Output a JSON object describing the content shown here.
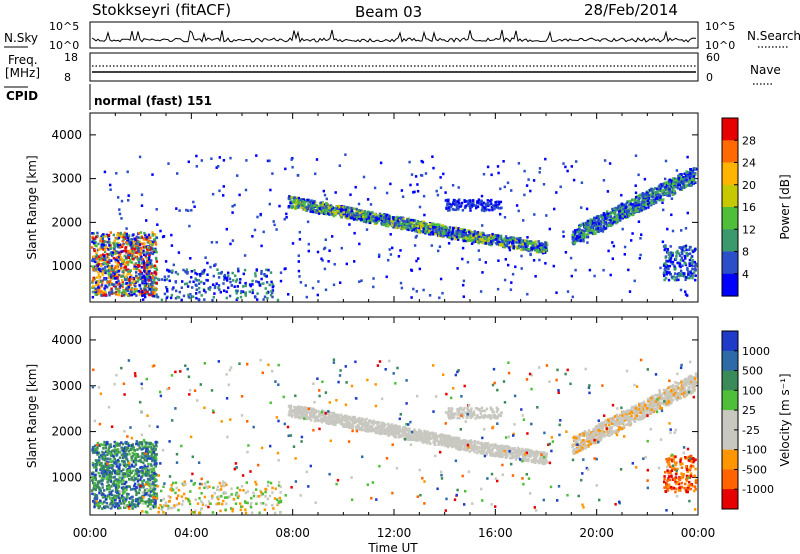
{
  "header": {
    "station": "Stokkseyri (fitACF)",
    "beam": "Beam 03",
    "date": "28/Feb/2014"
  },
  "summary": {
    "nsky_label": "N.Sky",
    "nsearch_label": "N.Search",
    "freq_label_1": "Freq.",
    "freq_label_2": "[MHz]",
    "nave_label": "Nave",
    "cpid_label": "CPID",
    "cpid_value": "normal (fast) 151",
    "nsky_ticks": [
      "10^5",
      "10^0"
    ],
    "nsearch_ticks": [
      "10^5",
      "10^0"
    ],
    "freq_ticks": [
      "18",
      "8"
    ],
    "nave_ticks": [
      "60",
      "0"
    ]
  },
  "x_axis": {
    "label": "Time UT",
    "ticks": [
      "00:00",
      "04:00",
      "08:00",
      "12:00",
      "16:00",
      "20:00",
      "00:00"
    ]
  },
  "chart_data": [
    {
      "type": "heatmap",
      "name": "power",
      "ylabel": "Slant Range [km]",
      "yticks": [
        "1000",
        "2000",
        "3000",
        "4000"
      ],
      "ylim": [
        180,
        4500
      ],
      "xlim": [
        0,
        24
      ],
      "colorbar_label": "Power [dB]",
      "colorbar_ticks": [
        "28",
        "24",
        "20",
        "16",
        "12",
        "8",
        "4"
      ],
      "colorbar_colors": [
        "#e60000",
        "#ff6a00",
        "#ffb400",
        "#c6c800",
        "#4fbf3a",
        "#3a9a6e",
        "#2b4fc8",
        "#0000ff"
      ],
      "features": [
        {
          "desc": "early near-range patch",
          "t_start": 0.0,
          "t_end": 2.5,
          "r_start": 400,
          "r_end": 1800
        },
        {
          "desc": "main echo band",
          "t_start": 7.8,
          "t_end": 18.0,
          "r_start": 1400,
          "r_end": 2600
        },
        {
          "desc": "evening rising band",
          "t_start": 19.0,
          "t_end": 24.0,
          "r_start": 1500,
          "r_end": 3200
        }
      ]
    },
    {
      "type": "heatmap",
      "name": "velocity",
      "ylabel": "Slant Range [km]",
      "yticks": [
        "1000",
        "2000",
        "3000",
        "4000"
      ],
      "ylim": [
        180,
        4500
      ],
      "xlim": [
        0,
        24
      ],
      "colorbar_label": "Velocity [m s⁻¹]",
      "colorbar_ticks": [
        "1000",
        "500",
        "100",
        "25",
        "-25",
        "-100",
        "-500",
        "-1000"
      ],
      "colorbar_colors": [
        "#1e3cc8",
        "#2e6aa8",
        "#3a8a5a",
        "#4fbf3a",
        "#c8c8c0",
        "#c8c8c0",
        "#ff9600",
        "#ff6400",
        "#e60000"
      ],
      "features": [
        {
          "desc": "early patch mixed velocities",
          "t_start": 0.0,
          "t_end": 2.5,
          "r_start": 400,
          "r_end": 1800
        },
        {
          "desc": "main echo band near zero velocity",
          "t_start": 7.8,
          "t_end": 18.0,
          "r_start": 1400,
          "r_end": 2600
        },
        {
          "desc": "evening rising band",
          "t_start": 19.0,
          "t_end": 24.0,
          "r_start": 1500,
          "r_end": 3200
        }
      ]
    }
  ]
}
